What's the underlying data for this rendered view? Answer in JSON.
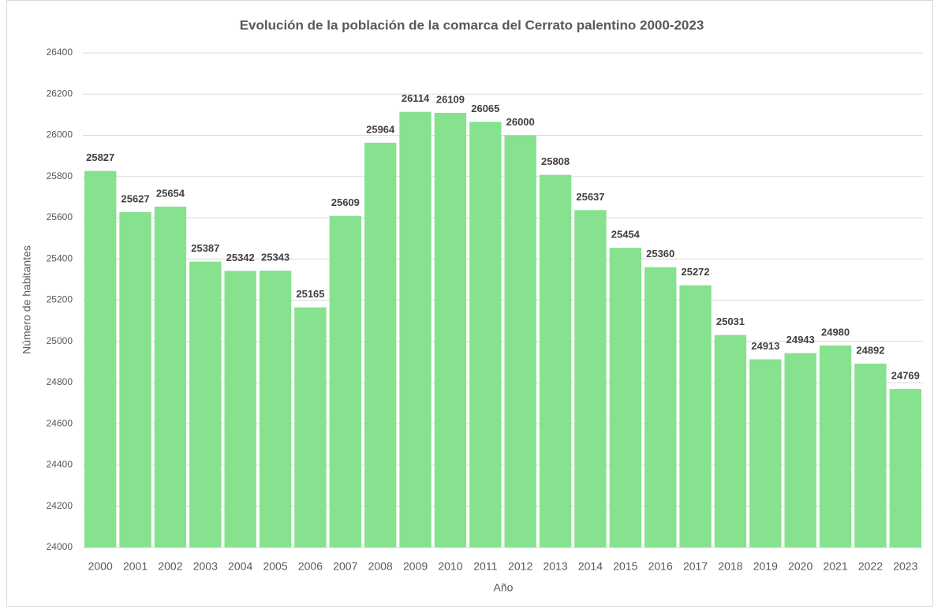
{
  "chart_data": {
    "type": "bar",
    "title": "Evolución de la población de la comarca del Cerrato palentino 2000-2023",
    "x_label": "Año",
    "y_label": "Número de habitantes",
    "categories": [
      "2000",
      "2001",
      "2002",
      "2003",
      "2004",
      "2005",
      "2006",
      "2007",
      "2008",
      "2009",
      "2010",
      "2011",
      "2012",
      "2013",
      "2014",
      "2015",
      "2016",
      "2017",
      "2018",
      "2019",
      "2020",
      "2021",
      "2022",
      "2023"
    ],
    "values": [
      25827,
      25627,
      25654,
      25387,
      25342,
      25343,
      25165,
      25609,
      25964,
      26114,
      26109,
      26065,
      26000,
      25808,
      25637,
      25454,
      25360,
      25272,
      25031,
      24913,
      24943,
      24980,
      24892,
      24769
    ],
    "color": "#86e28e",
    "ylim": [
      24000,
      26400
    ],
    "yticks": [
      24000,
      24200,
      24400,
      24600,
      24800,
      25000,
      25200,
      25400,
      25600,
      25800,
      26000,
      26200,
      26400
    ],
    "grid": true
  }
}
